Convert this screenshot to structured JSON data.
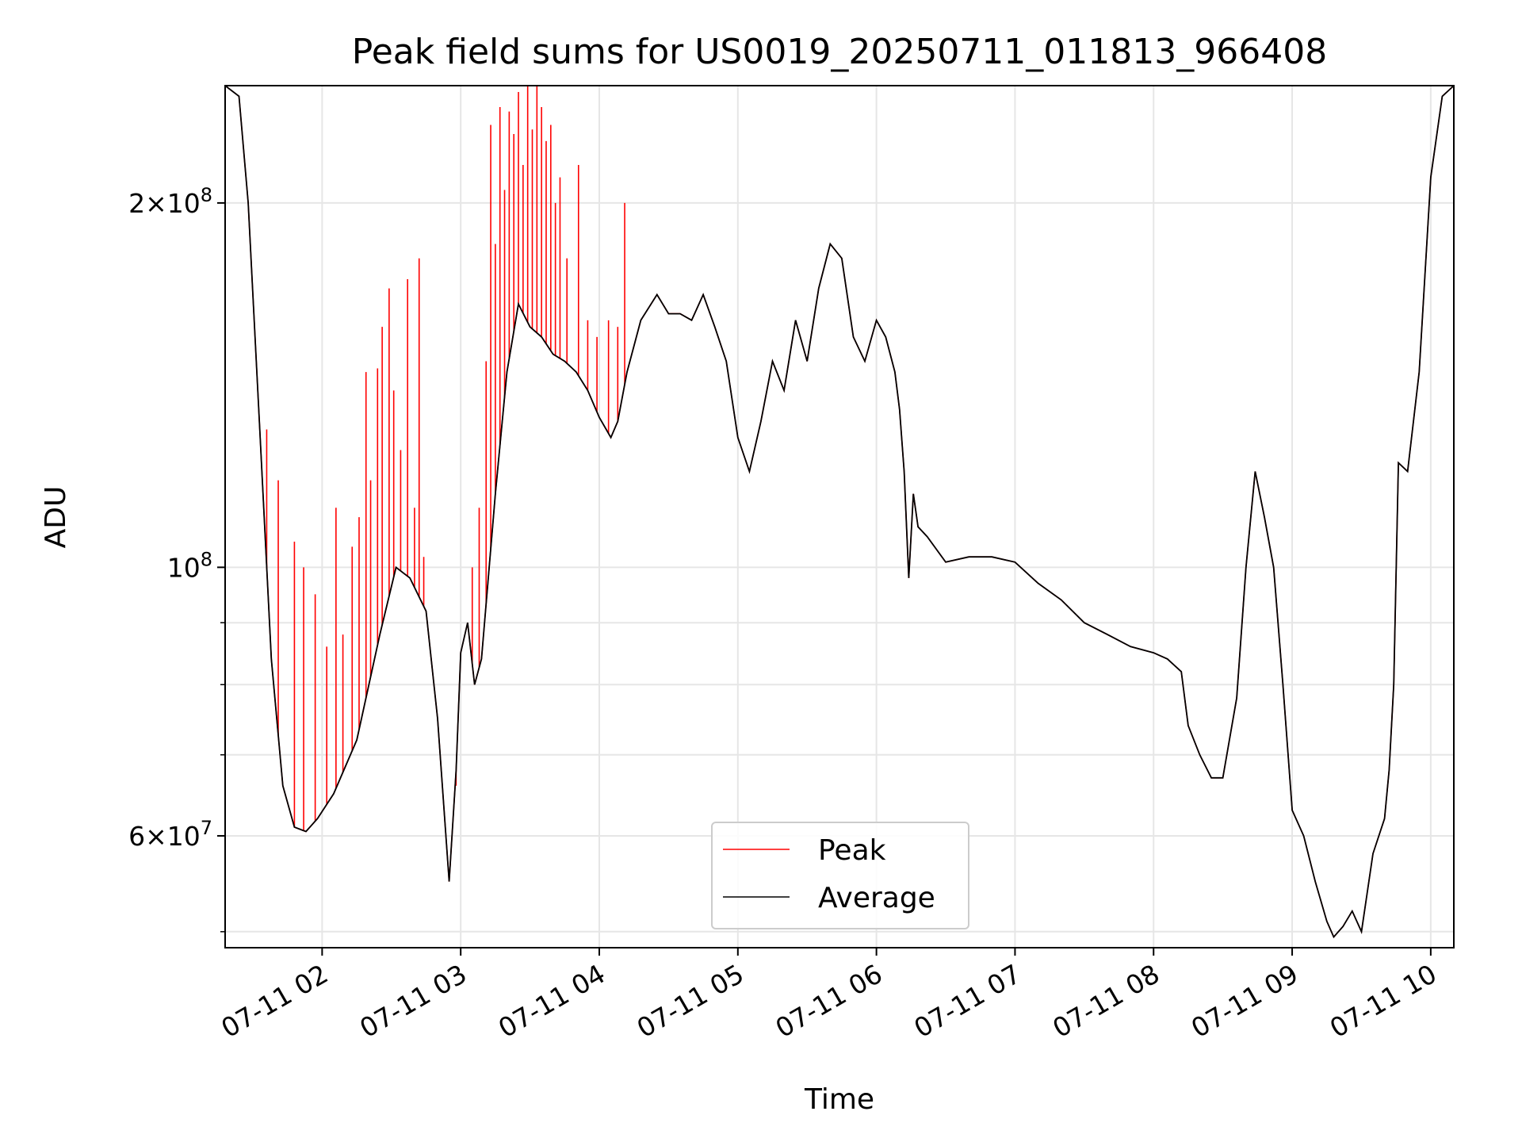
{
  "chart_data": {
    "type": "line",
    "title": "Peak field sums for US0019_20250711_011813_966408",
    "xlabel": "Time",
    "ylabel": "ADU",
    "yscale": "log",
    "ylim": [
      48500000,
      250000000
    ],
    "xlim": [
      "2025-07-11 01:18",
      "2025-07-11 10:10"
    ],
    "grid": true,
    "legend_position": "lower center",
    "x_ticks": [
      {
        "time": "2025-07-11 02:00",
        "label": "07-11 02"
      },
      {
        "time": "2025-07-11 03:00",
        "label": "07-11 03"
      },
      {
        "time": "2025-07-11 04:00",
        "label": "07-11 04"
      },
      {
        "time": "2025-07-11 05:00",
        "label": "07-11 05"
      },
      {
        "time": "2025-07-11 06:00",
        "label": "07-11 06"
      },
      {
        "time": "2025-07-11 07:00",
        "label": "07-11 07"
      },
      {
        "time": "2025-07-11 08:00",
        "label": "07-11 08"
      },
      {
        "time": "2025-07-11 09:00",
        "label": "07-11 09"
      },
      {
        "time": "2025-07-11 10:00",
        "label": "07-11 10"
      }
    ],
    "y_ticks": [
      {
        "value": 60000000,
        "mantissa": "6",
        "exponent": "7"
      },
      {
        "value": 100000000,
        "mantissa": "",
        "exponent": "8"
      },
      {
        "value": 200000000,
        "mantissa": "2",
        "exponent": "8"
      }
    ],
    "y_minor_ticks": [
      50000000,
      70000000,
      80000000,
      90000000
    ],
    "series": [
      {
        "name": "Average",
        "color": "#000000",
        "x": [
          "2025-07-11 01:18",
          "2025-07-11 01:24",
          "2025-07-11 01:28",
          "2025-07-11 01:33",
          "2025-07-11 01:38",
          "2025-07-11 01:43",
          "2025-07-11 01:48",
          "2025-07-11 01:53",
          "2025-07-11 01:58",
          "2025-07-11 02:05",
          "2025-07-11 02:15",
          "2025-07-11 02:25",
          "2025-07-11 02:32",
          "2025-07-11 02:38",
          "2025-07-11 02:45",
          "2025-07-11 02:50",
          "2025-07-11 02:55",
          "2025-07-11 02:58",
          "2025-07-11 03:00",
          "2025-07-11 03:03",
          "2025-07-11 03:06",
          "2025-07-11 03:09",
          "2025-07-11 03:15",
          "2025-07-11 03:20",
          "2025-07-11 03:25",
          "2025-07-11 03:30",
          "2025-07-11 03:35",
          "2025-07-11 03:40",
          "2025-07-11 03:45",
          "2025-07-11 03:50",
          "2025-07-11 03:55",
          "2025-07-11 04:00",
          "2025-07-11 04:05",
          "2025-07-11 04:08",
          "2025-07-11 04:12",
          "2025-07-11 04:18",
          "2025-07-11 04:25",
          "2025-07-11 04:30",
          "2025-07-11 04:35",
          "2025-07-11 04:40",
          "2025-07-11 04:45",
          "2025-07-11 04:50",
          "2025-07-11 04:55",
          "2025-07-11 05:00",
          "2025-07-11 05:05",
          "2025-07-11 05:10",
          "2025-07-11 05:15",
          "2025-07-11 05:20",
          "2025-07-11 05:25",
          "2025-07-11 05:30",
          "2025-07-11 05:35",
          "2025-07-11 05:40",
          "2025-07-11 05:45",
          "2025-07-11 05:50",
          "2025-07-11 05:55",
          "2025-07-11 06:00",
          "2025-07-11 06:04",
          "2025-07-11 06:08",
          "2025-07-11 06:10",
          "2025-07-11 06:12",
          "2025-07-11 06:14",
          "2025-07-11 06:16",
          "2025-07-11 06:18",
          "2025-07-11 06:22",
          "2025-07-11 06:30",
          "2025-07-11 06:40",
          "2025-07-11 06:50",
          "2025-07-11 07:00",
          "2025-07-11 07:10",
          "2025-07-11 07:20",
          "2025-07-11 07:30",
          "2025-07-11 07:40",
          "2025-07-11 07:50",
          "2025-07-11 08:00",
          "2025-07-11 08:06",
          "2025-07-11 08:12",
          "2025-07-11 08:15",
          "2025-07-11 08:20",
          "2025-07-11 08:25",
          "2025-07-11 08:30",
          "2025-07-11 08:36",
          "2025-07-11 08:40",
          "2025-07-11 08:44",
          "2025-07-11 08:48",
          "2025-07-11 08:52",
          "2025-07-11 08:56",
          "2025-07-11 09:00",
          "2025-07-11 09:05",
          "2025-07-11 09:10",
          "2025-07-11 09:15",
          "2025-07-11 09:18",
          "2025-07-11 09:22",
          "2025-07-11 09:26",
          "2025-07-11 09:30",
          "2025-07-11 09:35",
          "2025-07-11 09:40",
          "2025-07-11 09:42",
          "2025-07-11 09:44",
          "2025-07-11 09:46",
          "2025-07-11 09:50",
          "2025-07-11 09:55",
          "2025-07-11 10:00",
          "2025-07-11 10:05",
          "2025-07-11 10:10"
        ],
        "y": [
          250000000,
          245000000,
          200000000,
          130000000,
          84000000,
          66000000,
          61000000,
          60500000,
          62000000,
          65000000,
          72000000,
          88000000,
          100000000,
          98000000,
          92000000,
          75000000,
          55000000,
          68000000,
          85000000,
          90000000,
          80000000,
          84000000,
          115000000,
          145000000,
          165000000,
          158000000,
          155000000,
          150000000,
          148000000,
          145000000,
          140000000,
          133000000,
          128000000,
          132000000,
          145000000,
          160000000,
          168000000,
          162000000,
          162000000,
          160000000,
          168000000,
          158000000,
          148000000,
          128000000,
          120000000,
          132000000,
          148000000,
          140000000,
          160000000,
          148000000,
          170000000,
          185000000,
          180000000,
          155000000,
          148000000,
          160000000,
          155000000,
          145000000,
          135000000,
          120000000,
          98000000,
          115000000,
          108000000,
          106000000,
          101000000,
          102000000,
          102000000,
          101000000,
          97000000,
          94000000,
          90000000,
          88000000,
          86000000,
          85000000,
          84000000,
          82000000,
          74000000,
          70000000,
          67000000,
          67000000,
          78000000,
          100000000,
          120000000,
          110000000,
          100000000,
          80000000,
          63000000,
          60000000,
          55000000,
          51000000,
          49500000,
          50500000,
          52000000,
          50000000,
          58000000,
          62000000,
          68000000,
          80000000,
          122000000,
          120000000,
          145000000,
          210000000,
          245000000,
          250000000
        ]
      },
      {
        "name": "Peak",
        "color": "#ff0000",
        "x": [
          "2025-07-11 01:18",
          "2025-07-11 01:24",
          "2025-07-11 01:28",
          "2025-07-11 01:33",
          "2025-07-11 01:38",
          "2025-07-11 01:43",
          "2025-07-11 01:48",
          "2025-07-11 01:53",
          "2025-07-11 01:58",
          "2025-07-11 02:05",
          "2025-07-11 02:15",
          "2025-07-11 02:25",
          "2025-07-11 02:32",
          "2025-07-11 02:38",
          "2025-07-11 02:45",
          "2025-07-11 02:50",
          "2025-07-11 02:55",
          "2025-07-11 02:58",
          "2025-07-11 03:00",
          "2025-07-11 03:03",
          "2025-07-11 03:06",
          "2025-07-11 03:09",
          "2025-07-11 03:15",
          "2025-07-11 03:20",
          "2025-07-11 03:25",
          "2025-07-11 03:30",
          "2025-07-11 03:35",
          "2025-07-11 03:40",
          "2025-07-11 03:45",
          "2025-07-11 03:50",
          "2025-07-11 03:55",
          "2025-07-11 04:00",
          "2025-07-11 04:05",
          "2025-07-11 04:08",
          "2025-07-11 04:12",
          "2025-07-11 04:18",
          "2025-07-11 04:25",
          "2025-07-11 04:30",
          "2025-07-11 04:35",
          "2025-07-11 04:40",
          "2025-07-11 04:45",
          "2025-07-11 04:50",
          "2025-07-11 04:55",
          "2025-07-11 05:00",
          "2025-07-11 05:05",
          "2025-07-11 05:10",
          "2025-07-11 05:15",
          "2025-07-11 05:20",
          "2025-07-11 05:25",
          "2025-07-11 05:30",
          "2025-07-11 05:35",
          "2025-07-11 05:40",
          "2025-07-11 05:45",
          "2025-07-11 05:50",
          "2025-07-11 05:55",
          "2025-07-11 06:00",
          "2025-07-11 06:04",
          "2025-07-11 06:08",
          "2025-07-11 06:10",
          "2025-07-11 06:12",
          "2025-07-11 06:14",
          "2025-07-11 06:16",
          "2025-07-11 06:18",
          "2025-07-11 06:22",
          "2025-07-11 06:30",
          "2025-07-11 06:40",
          "2025-07-11 06:50",
          "2025-07-11 07:00",
          "2025-07-11 07:10",
          "2025-07-11 07:20",
          "2025-07-11 07:30",
          "2025-07-11 07:40",
          "2025-07-11 07:50",
          "2025-07-11 08:00",
          "2025-07-11 08:06",
          "2025-07-11 08:12",
          "2025-07-11 08:15",
          "2025-07-11 08:20",
          "2025-07-11 08:25",
          "2025-07-11 08:30",
          "2025-07-11 08:36",
          "2025-07-11 08:40",
          "2025-07-11 08:44",
          "2025-07-11 08:48",
          "2025-07-11 08:52",
          "2025-07-11 08:56",
          "2025-07-11 09:00",
          "2025-07-11 09:05",
          "2025-07-11 09:10",
          "2025-07-11 09:15",
          "2025-07-11 09:18",
          "2025-07-11 09:22",
          "2025-07-11 09:26",
          "2025-07-11 09:30",
          "2025-07-11 09:35",
          "2025-07-11 09:40",
          "2025-07-11 09:42",
          "2025-07-11 09:44",
          "2025-07-11 09:46",
          "2025-07-11 09:50",
          "2025-07-11 09:55",
          "2025-07-11 10:00",
          "2025-07-11 10:05",
          "2025-07-11 10:10"
        ],
        "y": [
          250000000,
          245000000,
          200000000,
          130000000,
          84000000,
          66000000,
          61000000,
          60500000,
          62000000,
          65000000,
          72000000,
          88000000,
          100000000,
          98000000,
          92000000,
          75000000,
          55000000,
          68000000,
          85000000,
          90000000,
          80000000,
          84000000,
          115000000,
          145000000,
          165000000,
          158000000,
          155000000,
          150000000,
          148000000,
          145000000,
          140000000,
          133000000,
          128000000,
          132000000,
          145000000,
          160000000,
          168000000,
          162000000,
          162000000,
          160000000,
          168000000,
          158000000,
          148000000,
          128000000,
          120000000,
          132000000,
          148000000,
          140000000,
          160000000,
          148000000,
          170000000,
          185000000,
          180000000,
          155000000,
          148000000,
          160000000,
          155000000,
          145000000,
          135000000,
          120000000,
          98000000,
          115000000,
          108000000,
          106000000,
          101000000,
          102000000,
          102000000,
          101000000,
          97000000,
          94000000,
          90000000,
          88000000,
          86000000,
          85000000,
          84000000,
          82000000,
          74000000,
          70000000,
          67000000,
          67000000,
          78000000,
          100000000,
          120000000,
          110000000,
          100000000,
          80000000,
          63000000,
          60000000,
          55000000,
          51000000,
          49500000,
          50500000,
          52000000,
          50000000,
          58000000,
          62000000,
          68000000,
          80000000,
          122000000,
          120000000,
          145000000,
          210000000,
          245000000,
          250000000
        ],
        "spikes": [
          {
            "time": "2025-07-11 01:36",
            "y": 130000000
          },
          {
            "time": "2025-07-11 01:41",
            "y": 118000000
          },
          {
            "time": "2025-07-11 01:48",
            "y": 105000000
          },
          {
            "time": "2025-07-11 01:52",
            "y": 100000000
          },
          {
            "time": "2025-07-11 01:57",
            "y": 95000000
          },
          {
            "time": "2025-07-11 02:02",
            "y": 86000000
          },
          {
            "time": "2025-07-11 02:06",
            "y": 112000000
          },
          {
            "time": "2025-07-11 02:09",
            "y": 88000000
          },
          {
            "time": "2025-07-11 02:13",
            "y": 104000000
          },
          {
            "time": "2025-07-11 02:16",
            "y": 110000000
          },
          {
            "time": "2025-07-11 02:19",
            "y": 145000000
          },
          {
            "time": "2025-07-11 02:21",
            "y": 118000000
          },
          {
            "time": "2025-07-11 02:24",
            "y": 146000000
          },
          {
            "time": "2025-07-11 02:26",
            "y": 158000000
          },
          {
            "time": "2025-07-11 02:29",
            "y": 170000000
          },
          {
            "time": "2025-07-11 02:31",
            "y": 140000000
          },
          {
            "time": "2025-07-11 02:34",
            "y": 125000000
          },
          {
            "time": "2025-07-11 02:37",
            "y": 173000000
          },
          {
            "time": "2025-07-11 02:40",
            "y": 112000000
          },
          {
            "time": "2025-07-11 02:42",
            "y": 180000000
          },
          {
            "time": "2025-07-11 02:44",
            "y": 102000000
          },
          {
            "time": "2025-07-11 02:58",
            "y": 66000000
          },
          {
            "time": "2025-07-11 03:05",
            "y": 100000000
          },
          {
            "time": "2025-07-11 03:08",
            "y": 112000000
          },
          {
            "time": "2025-07-11 03:11",
            "y": 148000000
          },
          {
            "time": "2025-07-11 03:13",
            "y": 232000000
          },
          {
            "time": "2025-07-11 03:15",
            "y": 185000000
          },
          {
            "time": "2025-07-11 03:17",
            "y": 240000000
          },
          {
            "time": "2025-07-11 03:19",
            "y": 205000000
          },
          {
            "time": "2025-07-11 03:21",
            "y": 238000000
          },
          {
            "time": "2025-07-11 03:23",
            "y": 228000000
          },
          {
            "time": "2025-07-11 03:25",
            "y": 247000000
          },
          {
            "time": "2025-07-11 03:27",
            "y": 215000000
          },
          {
            "time": "2025-07-11 03:29",
            "y": 250000000
          },
          {
            "time": "2025-07-11 03:31",
            "y": 230000000
          },
          {
            "time": "2025-07-11 03:33",
            "y": 250000000
          },
          {
            "time": "2025-07-11 03:35",
            "y": 240000000
          },
          {
            "time": "2025-07-11 03:37",
            "y": 225000000
          },
          {
            "time": "2025-07-11 03:39",
            "y": 232000000
          },
          {
            "time": "2025-07-11 03:41",
            "y": 200000000
          },
          {
            "time": "2025-07-11 03:43",
            "y": 210000000
          },
          {
            "time": "2025-07-11 03:46",
            "y": 180000000
          },
          {
            "time": "2025-07-11 03:51",
            "y": 215000000
          },
          {
            "time": "2025-07-11 03:55",
            "y": 160000000
          },
          {
            "time": "2025-07-11 03:59",
            "y": 155000000
          },
          {
            "time": "2025-07-11 04:04",
            "y": 160000000
          },
          {
            "time": "2025-07-11 04:08",
            "y": 158000000
          },
          {
            "time": "2025-07-11 04:11",
            "y": 200000000
          }
        ]
      }
    ]
  },
  "legend": {
    "peak_label": "Peak",
    "average_label": "Average"
  }
}
